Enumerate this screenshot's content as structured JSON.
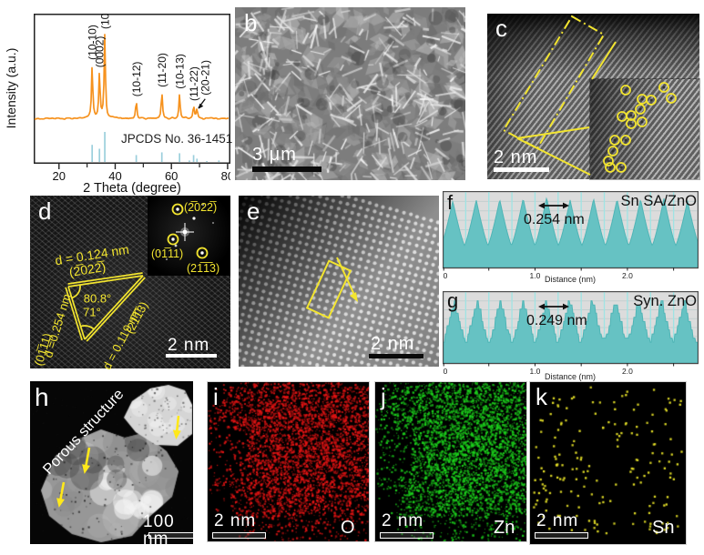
{
  "figure": {
    "background": "#ffffff"
  },
  "colors": {
    "xrd_curve": "#F6921E",
    "xrd_reference": "#9BCFDC",
    "annotation_yellow": "#F3E52F",
    "profile_fill": "#66C2C3",
    "profile_grid": "#9FE4E4",
    "profile_bg": "#DCDCDC",
    "map_o": "#E11414",
    "map_zn": "#19CD19",
    "map_sn": "#E9E426"
  },
  "panels": {
    "a": {
      "letter": "a"
    },
    "b": {
      "letter": "b",
      "scale_bar_label": "3 μm"
    },
    "c": {
      "letter": "c",
      "scale_bar_label": "2 nm"
    },
    "d": {
      "letter": "d",
      "scale_bar_label": "2 nm",
      "d_spacing_top": "d = 0.124 nm",
      "plane_top": "(2̅022̅)",
      "angle_outer": "80.8°",
      "angle_inner": "71°",
      "d_spacing_left": "d =0.254 nm",
      "plane_left": "(01̅11)",
      "d_spacing_right": "d = 0.119 nm",
      "plane_right": "(21̅1̅3)",
      "fft_label_1": "(2̅022̅)",
      "fft_label_2": "(01̅11)",
      "fft_label_3": "(21̅1̅3)"
    },
    "e": {
      "letter": "e",
      "scale_bar_label": "2 nm"
    },
    "f": {
      "letter": "f",
      "sample_label": "Sn SA/ZnO",
      "spacing_label": "0.254 nm",
      "xlabel": "Distance (nm)"
    },
    "g": {
      "letter": "g",
      "sample_label": "Syn. ZnO",
      "spacing_label": "0.249 nm",
      "xlabel": "Distance (nm)"
    },
    "h": {
      "letter": "h",
      "annotation": "Porous structure",
      "scale_bar_label": "100 nm"
    },
    "i": {
      "letter": "i",
      "element_label": "O",
      "scale_bar_label": "2 nm"
    },
    "j": {
      "letter": "j",
      "element_label": "Zn",
      "scale_bar_label": "2 nm"
    },
    "k": {
      "letter": "k",
      "element_label": "Sn",
      "scale_bar_label": "2 nm"
    }
  },
  "chart_data": [
    {
      "id": "a",
      "type": "line",
      "title": "",
      "xlabel": "2 Theta (degree)",
      "ylabel": "Intensity (a.u.)",
      "xlim": [
        11,
        81
      ],
      "xticks": [
        20,
        40,
        60,
        80
      ],
      "xtick_labels": [
        "20",
        "40",
        "60",
        "80"
      ],
      "minor_ticks": [
        30,
        50,
        70
      ],
      "grid": false,
      "peaks": [
        {
          "two_theta": 31.8,
          "rel_intensity": 0.64,
          "hkl": "(10-10)"
        },
        {
          "two_theta": 34.4,
          "rel_intensity": 0.55,
          "hkl": "(0002)"
        },
        {
          "two_theta": 36.3,
          "rel_intensity": 1.0,
          "hkl": "(10-11)"
        },
        {
          "two_theta": 47.5,
          "rel_intensity": 0.21,
          "hkl": "(10-12)"
        },
        {
          "two_theta": 56.6,
          "rel_intensity": 0.32,
          "hkl": "(11-20)"
        },
        {
          "two_theta": 62.9,
          "rel_intensity": 0.3,
          "hkl": "(10-13)"
        },
        {
          "two_theta": 67.9,
          "rel_intensity": 0.16,
          "hkl": "(11-22)"
        },
        {
          "two_theta": 69.1,
          "rel_intensity": 0.12,
          "hkl": "(20-21)"
        }
      ],
      "reference_sticks": [
        [
          31.8,
          0.57
        ],
        [
          34.4,
          0.44
        ],
        [
          36.3,
          1.0
        ],
        [
          47.5,
          0.23
        ],
        [
          56.6,
          0.32
        ],
        [
          62.9,
          0.29
        ],
        [
          66.4,
          0.05
        ],
        [
          67.9,
          0.23
        ],
        [
          69.1,
          0.11
        ],
        [
          72.6,
          0.03
        ],
        [
          76.9,
          0.05
        ]
      ],
      "reference_label": "JPCDS No. 36-1451"
    },
    {
      "id": "f",
      "type": "area",
      "sample": "Sn SA/ZnO",
      "fringe_spacing_nm": 0.254,
      "n_peaks": 11,
      "first_peak_nm": 0.11,
      "xlim": [
        0,
        2.76
      ],
      "xticks": [
        0,
        1.0,
        2.0
      ],
      "xtick_labels": [
        "0",
        "1.0",
        "2.0"
      ],
      "xlabel": "Distance (nm)",
      "stepped": false
    },
    {
      "id": "g",
      "type": "area",
      "sample": "Syn. ZnO",
      "fringe_spacing_nm": 0.249,
      "n_peaks": 11,
      "first_peak_nm": 0.13,
      "xlim": [
        0,
        2.76
      ],
      "xticks": [
        0,
        1.0,
        2.0
      ],
      "xtick_labels": [
        "0",
        "1.0",
        "2.0"
      ],
      "xlabel": "Distance (nm)",
      "stepped": true
    }
  ]
}
